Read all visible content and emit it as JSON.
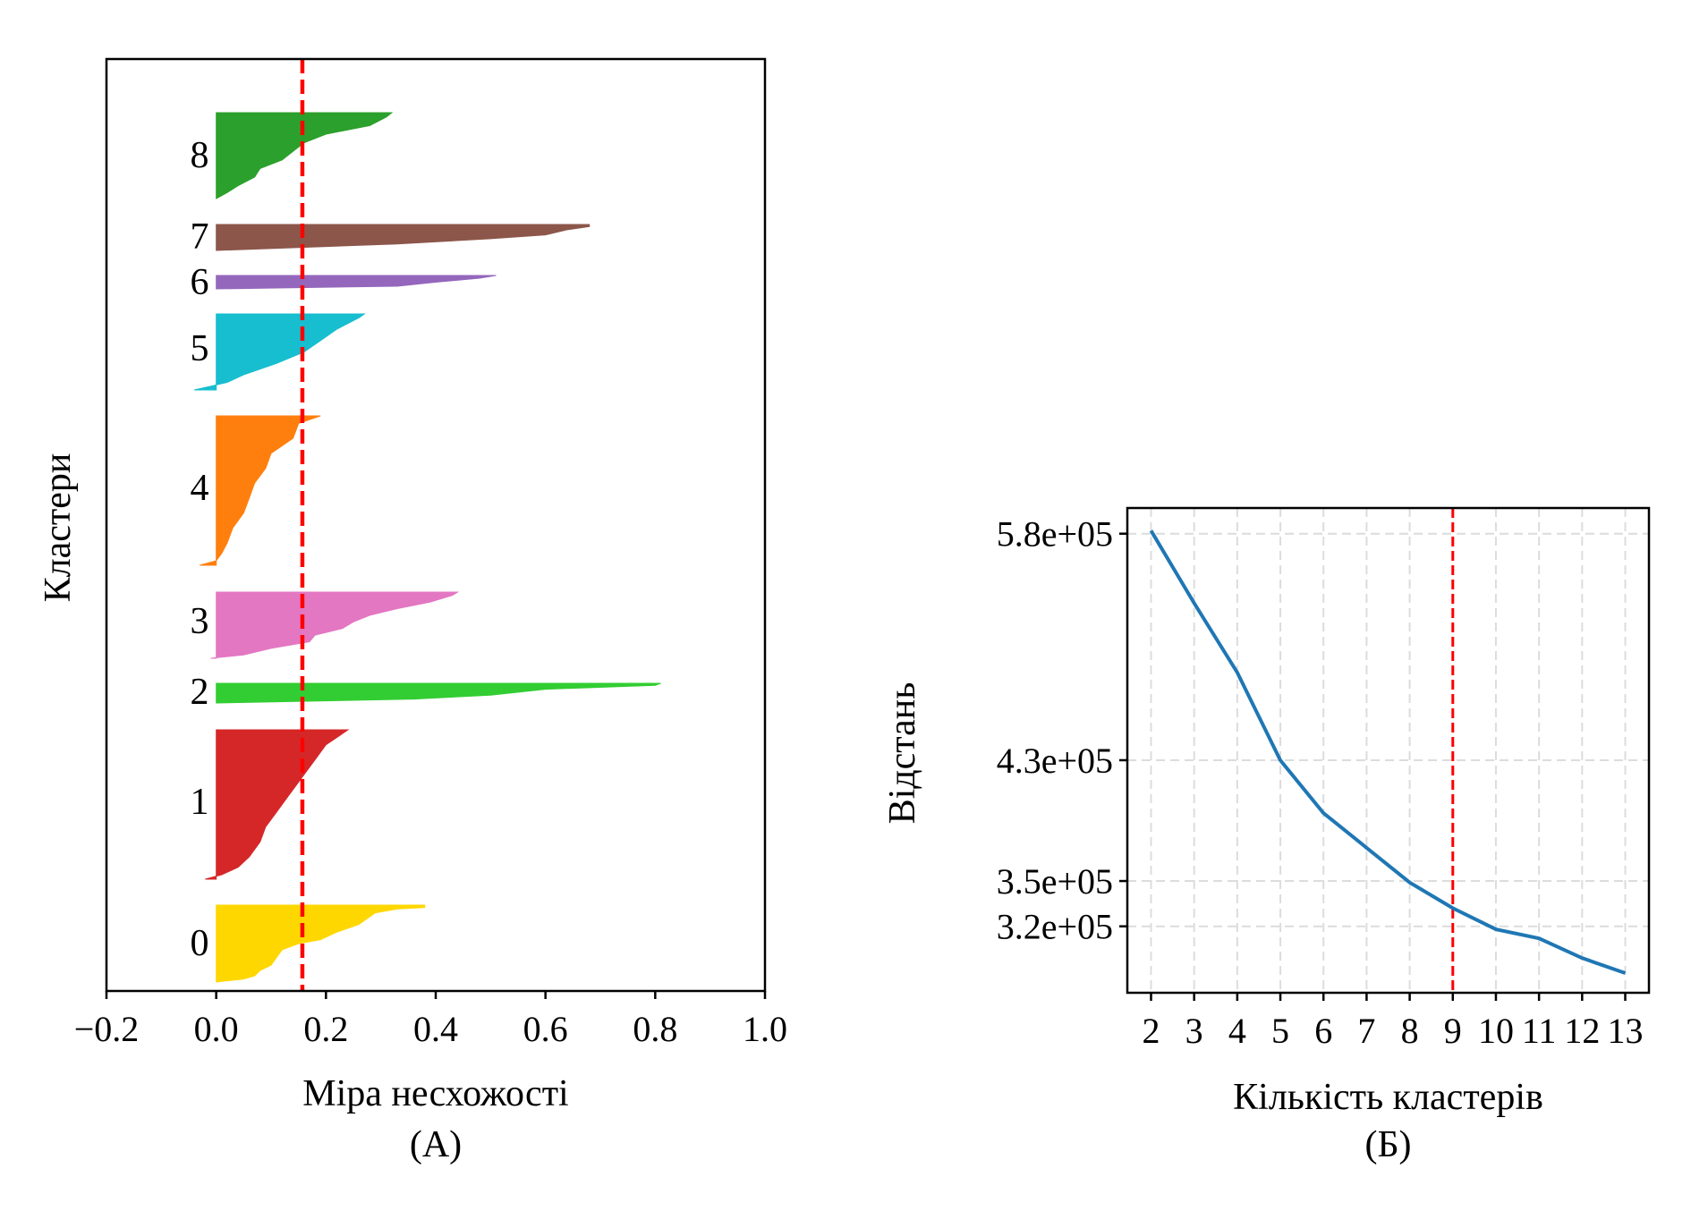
{
  "chart_data": [
    {
      "type": "area",
      "subtitle": "(А)",
      "xlabel": "Міра несхожості",
      "ylabel": "Кластери",
      "xlim": [
        -0.2,
        1.0
      ],
      "xticks": [
        -0.2,
        0.0,
        0.2,
        0.4,
        0.6,
        0.8,
        1.0
      ],
      "xtick_labels": [
        "−0.2",
        "0.0",
        "0.2",
        "0.4",
        "0.6",
        "0.8",
        "1.0"
      ],
      "reference_line": {
        "x": 0.157,
        "color": "#ff0000",
        "style": "dashed"
      },
      "grid": false,
      "clusters": [
        {
          "label": "0",
          "color": "#ffd700",
          "max": 0.38,
          "min": 0.0,
          "profile": [
            [
              0,
              0.38
            ],
            [
              0.03,
              0.38
            ],
            [
              0.05,
              0.33
            ],
            [
              0.1,
              0.29
            ],
            [
              0.15,
              0.28
            ],
            [
              0.25,
              0.26
            ],
            [
              0.35,
              0.22
            ],
            [
              0.45,
              0.19
            ],
            [
              0.5,
              0.15
            ],
            [
              0.58,
              0.12
            ],
            [
              0.68,
              0.11
            ],
            [
              0.78,
              0.1
            ],
            [
              0.85,
              0.08
            ],
            [
              0.92,
              0.07
            ],
            [
              0.96,
              0.05
            ],
            [
              1,
              0.0
            ]
          ]
        },
        {
          "label": "1",
          "color": "#d62728",
          "max": 0.24,
          "min": -0.02,
          "profile": [
            [
              0,
              0.24
            ],
            [
              0.05,
              0.22
            ],
            [
              0.1,
              0.2
            ],
            [
              0.2,
              0.18
            ],
            [
              0.3,
              0.16
            ],
            [
              0.45,
              0.13
            ],
            [
              0.55,
              0.11
            ],
            [
              0.65,
              0.09
            ],
            [
              0.75,
              0.08
            ],
            [
              0.85,
              0.06
            ],
            [
              0.92,
              0.04
            ],
            [
              0.97,
              0.01
            ],
            [
              1,
              -0.02
            ]
          ]
        },
        {
          "label": "2",
          "color": "#32cd32",
          "max": 0.81,
          "min": 0.0,
          "profile": [
            [
              0,
              0.81
            ],
            [
              0.1,
              0.8
            ],
            [
              0.3,
              0.6
            ],
            [
              0.6,
              0.5
            ],
            [
              0.8,
              0.36
            ],
            [
              1,
              0.0
            ]
          ]
        },
        {
          "label": "3",
          "color": "#e377c2",
          "max": 0.44,
          "min": -0.01,
          "profile": [
            [
              0,
              0.44
            ],
            [
              0.05,
              0.43
            ],
            [
              0.15,
              0.39
            ],
            [
              0.25,
              0.33
            ],
            [
              0.35,
              0.28
            ],
            [
              0.45,
              0.25
            ],
            [
              0.55,
              0.23
            ],
            [
              0.65,
              0.18
            ],
            [
              0.75,
              0.17
            ],
            [
              0.85,
              0.1
            ],
            [
              0.95,
              0.05
            ],
            [
              1,
              -0.01
            ]
          ]
        },
        {
          "label": "4",
          "color": "#ff7f0e",
          "max": 0.19,
          "min": -0.03,
          "profile": [
            [
              0,
              0.19
            ],
            [
              0.05,
              0.15
            ],
            [
              0.15,
              0.14
            ],
            [
              0.25,
              0.1
            ],
            [
              0.35,
              0.09
            ],
            [
              0.45,
              0.07
            ],
            [
              0.55,
              0.06
            ],
            [
              0.65,
              0.05
            ],
            [
              0.75,
              0.03
            ],
            [
              0.85,
              0.02
            ],
            [
              0.92,
              0.01
            ],
            [
              0.97,
              0.0
            ],
            [
              1,
              -0.03
            ]
          ]
        },
        {
          "label": "5",
          "color": "#17becf",
          "max": 0.27,
          "min": -0.04,
          "profile": [
            [
              0,
              0.27
            ],
            [
              0.05,
              0.26
            ],
            [
              0.2,
              0.22
            ],
            [
              0.35,
              0.19
            ],
            [
              0.5,
              0.16
            ],
            [
              0.65,
              0.11
            ],
            [
              0.8,
              0.05
            ],
            [
              0.9,
              0.02
            ],
            [
              0.95,
              -0.01
            ],
            [
              1,
              -0.04
            ]
          ]
        },
        {
          "label": "6",
          "color": "#9467bd",
          "max": 0.51,
          "min": 0.0,
          "profile": [
            [
              0,
              0.51
            ],
            [
              0.2,
              0.48
            ],
            [
              0.5,
              0.4
            ],
            [
              0.8,
              0.33
            ],
            [
              1,
              0.0
            ]
          ]
        },
        {
          "label": "7",
          "color": "#8c564b",
          "max": 0.68,
          "min": 0.0,
          "profile": [
            [
              0,
              0.68
            ],
            [
              0.08,
              0.68
            ],
            [
              0.2,
              0.64
            ],
            [
              0.4,
              0.6
            ],
            [
              0.55,
              0.5
            ],
            [
              0.75,
              0.33
            ],
            [
              1,
              0.0
            ]
          ]
        },
        {
          "label": "8",
          "color": "#2ca02c",
          "max": 0.32,
          "min": 0.0,
          "profile": [
            [
              0,
              0.32
            ],
            [
              0.05,
              0.31
            ],
            [
              0.15,
              0.28
            ],
            [
              0.25,
              0.2
            ],
            [
              0.35,
              0.16
            ],
            [
              0.45,
              0.14
            ],
            [
              0.55,
              0.12
            ],
            [
              0.65,
              0.08
            ],
            [
              0.75,
              0.07
            ],
            [
              0.85,
              0.04
            ],
            [
              0.93,
              0.02
            ],
            [
              1,
              0.0
            ]
          ]
        }
      ]
    },
    {
      "type": "line",
      "subtitle": "(Б)",
      "xlabel": "Кількість кластерів",
      "ylabel": "Відстань",
      "x": [
        2,
        3,
        4,
        5,
        6,
        7,
        8,
        9,
        10,
        11,
        12,
        13
      ],
      "xtick_labels": [
        "2",
        "3",
        "4",
        "5",
        "6",
        "7",
        "8",
        "9",
        "10",
        "11",
        "12",
        "13"
      ],
      "series": [
        {
          "color": "#1f77b4",
          "values": [
            582000,
            534000,
            488000,
            430000,
            395000,
            372000,
            349000,
            332000,
            318000,
            312000,
            299000,
            289000
          ]
        }
      ],
      "ylim": [
        276000,
        597000
      ],
      "yticks": [
        580000,
        430000,
        350000,
        320000
      ],
      "ytick_labels": [
        "5.8e+05",
        "4.3e+05",
        "3.5e+05",
        "3.2e+05"
      ],
      "reference_line": {
        "x": 9,
        "color": "#ff0000",
        "style": "dashed"
      },
      "grid": true
    }
  ]
}
